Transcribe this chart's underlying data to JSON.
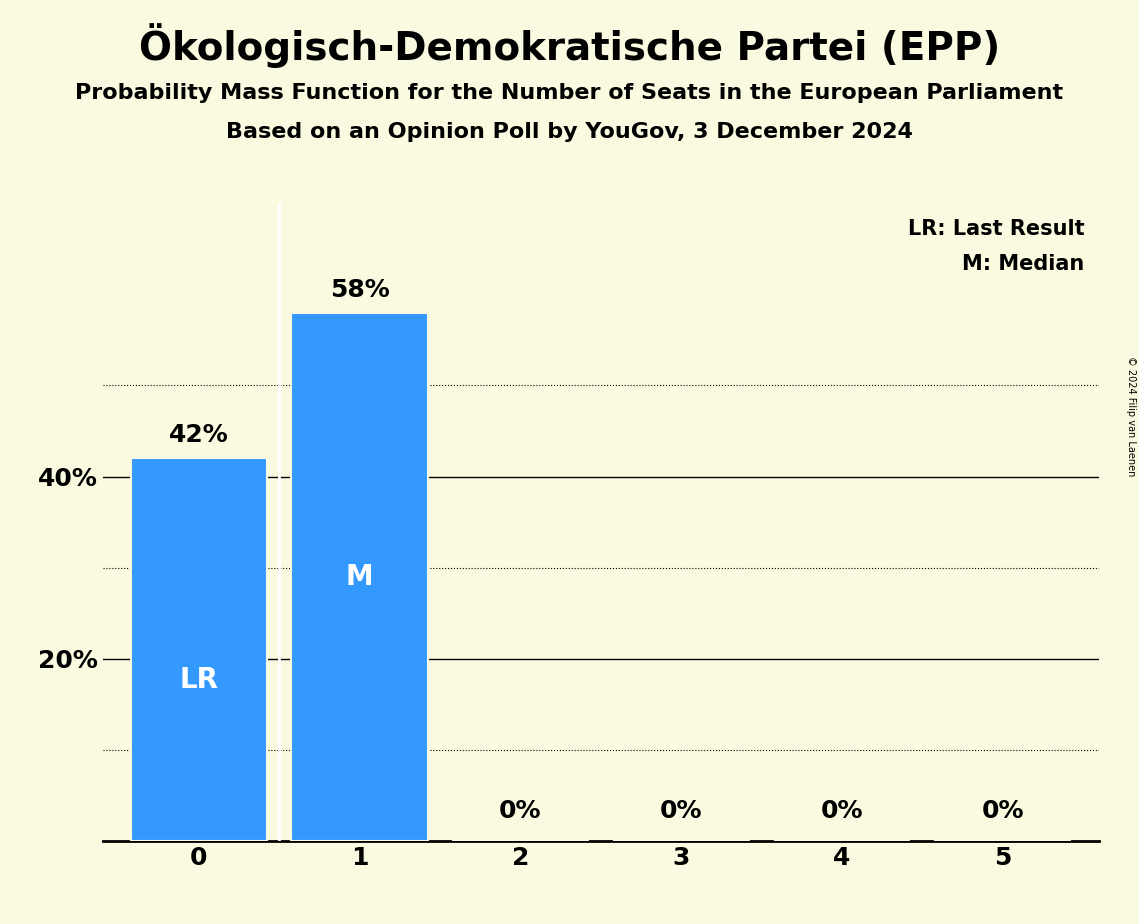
{
  "title": "Ökologisch-Demokratische Partei (EPP)",
  "subtitle1": "Probability Mass Function for the Number of Seats in the European Parliament",
  "subtitle2": "Based on an Opinion Poll by YouGov, 3 December 2024",
  "copyright": "© 2024 Filip van Laenen",
  "categories": [
    0,
    1,
    2,
    3,
    4,
    5
  ],
  "values": [
    0.42,
    0.58,
    0.0,
    0.0,
    0.0,
    0.0
  ],
  "bar_color": "#3399FF",
  "bar_labels": [
    "42%",
    "58%",
    "0%",
    "0%",
    "0%",
    "0%"
  ],
  "last_result_bar": 0,
  "median_bar": 1,
  "lr_label": "LR",
  "m_label": "M",
  "legend_text1": "LR: Last Result",
  "legend_text2": "M: Median",
  "background_color": "#FAFAE0",
  "ylim": [
    0,
    0.7
  ],
  "solid_yticks": [
    0.2,
    0.4
  ],
  "dotted_yticks": [
    0.1,
    0.3,
    0.5
  ],
  "title_fontsize": 28,
  "subtitle_fontsize": 16,
  "axis_label_fontsize": 18,
  "bar_label_fontsize": 18,
  "legend_fontsize": 15,
  "white_label_fontsize": 20
}
